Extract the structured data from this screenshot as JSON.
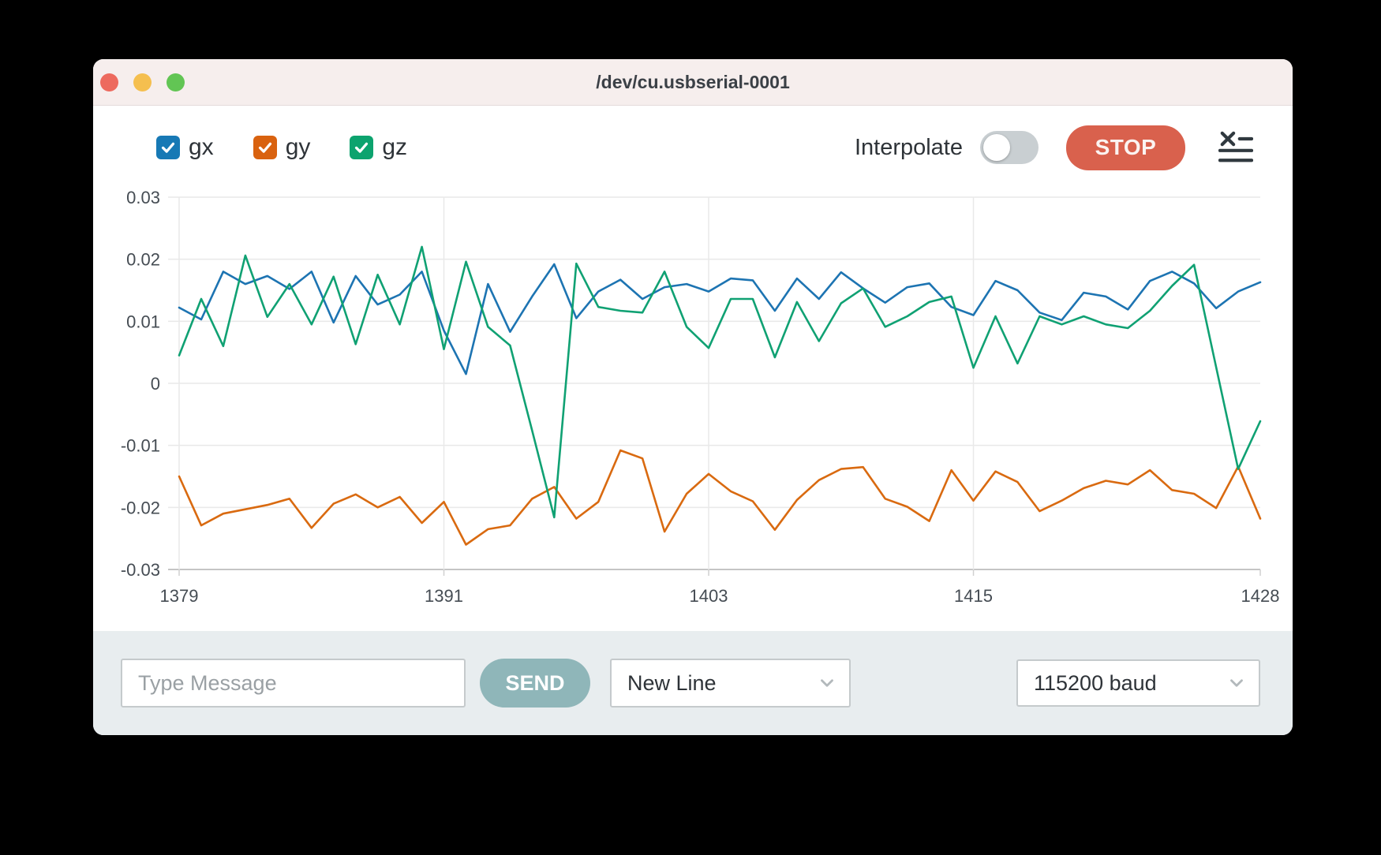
{
  "window": {
    "title": "/dev/cu.usbserial-0001"
  },
  "toolbar": {
    "interpolate_label": "Interpolate",
    "interpolate_on": false,
    "stop_label": "STOP"
  },
  "legend": {
    "items": [
      {
        "label": "gx",
        "color": "#1779b5",
        "checked": true
      },
      {
        "label": "gy",
        "color": "#d9620f",
        "checked": true
      },
      {
        "label": "gz",
        "color": "#0ca36e",
        "checked": true
      }
    ]
  },
  "chart_data": {
    "type": "line",
    "title": "",
    "xlabel": "",
    "ylabel": "",
    "xlim": [
      1379,
      1428
    ],
    "ylim": [
      -0.03,
      0.03
    ],
    "grid": true,
    "legend_position": "top-left",
    "x_ticks": [
      "1379",
      "1391",
      "1403",
      "1415",
      "1428"
    ],
    "y_ticks": [
      "0.03",
      "0.02",
      "0.01",
      "0",
      "-0.01",
      "-0.02",
      "-0.03"
    ],
    "x": [
      1379,
      1380,
      1381,
      1382,
      1383,
      1384,
      1385,
      1386,
      1387,
      1388,
      1389,
      1390,
      1391,
      1392,
      1393,
      1394,
      1395,
      1396,
      1397,
      1398,
      1399,
      1400,
      1401,
      1402,
      1403,
      1404,
      1405,
      1406,
      1407,
      1408,
      1409,
      1410,
      1411,
      1412,
      1413,
      1414,
      1415,
      1416,
      1417,
      1418,
      1419,
      1420,
      1421,
      1422,
      1423,
      1424,
      1425,
      1426,
      1427,
      1428
    ],
    "series": [
      {
        "name": "gx",
        "color": "#1d74b2",
        "values": [
          0.0122,
          0.0103,
          0.018,
          0.016,
          0.0173,
          0.0152,
          0.018,
          0.0098,
          0.0173,
          0.0127,
          0.0143,
          0.018,
          0.0085,
          0.0015,
          0.016,
          0.0083,
          0.014,
          0.0192,
          0.0105,
          0.0148,
          0.0167,
          0.0136,
          0.0155,
          0.016,
          0.0148,
          0.0169,
          0.0166,
          0.0117,
          0.0169,
          0.0136,
          0.0179,
          0.0153,
          0.013,
          0.0155,
          0.0161,
          0.0123,
          0.011,
          0.0165,
          0.015,
          0.0114,
          0.0102,
          0.0146,
          0.014,
          0.0119,
          0.0165,
          0.018,
          0.0161,
          0.0121,
          0.0148,
          0.0163
        ]
      },
      {
        "name": "gy",
        "color": "#d96a10",
        "values": [
          -0.015,
          -0.0229,
          -0.021,
          -0.0203,
          -0.0196,
          -0.0186,
          -0.0233,
          -0.0194,
          -0.0179,
          -0.02,
          -0.0183,
          -0.0225,
          -0.0191,
          -0.026,
          -0.0235,
          -0.0229,
          -0.0186,
          -0.0167,
          -0.0218,
          -0.0191,
          -0.0108,
          -0.0121,
          -0.0239,
          -0.0178,
          -0.0146,
          -0.0174,
          -0.019,
          -0.0236,
          -0.0188,
          -0.0156,
          -0.0138,
          -0.0135,
          -0.0186,
          -0.0199,
          -0.0222,
          -0.014,
          -0.0189,
          -0.0142,
          -0.0159,
          -0.0206,
          -0.0189,
          -0.0169,
          -0.0157,
          -0.0163,
          -0.014,
          -0.0172,
          -0.0178,
          -0.0201,
          -0.0134,
          -0.0218
        ]
      },
      {
        "name": "gz",
        "color": "#10a173",
        "values": [
          0.0045,
          0.0136,
          0.006,
          0.0206,
          0.0107,
          0.016,
          0.0095,
          0.0172,
          0.0063,
          0.0175,
          0.0095,
          0.022,
          0.0055,
          0.0196,
          0.0091,
          0.0061,
          -0.0076,
          -0.0216,
          0.0193,
          0.0123,
          0.0117,
          0.0114,
          0.018,
          0.0091,
          0.0057,
          0.0136,
          0.0136,
          0.0042,
          0.0131,
          0.0068,
          0.0129,
          0.0153,
          0.0091,
          0.0108,
          0.0131,
          0.014,
          0.0025,
          0.0108,
          0.0032,
          0.0108,
          0.0095,
          0.0108,
          0.0095,
          0.0089,
          0.0117,
          0.0157,
          0.0191,
          0.0026,
          -0.0138,
          -0.0061
        ]
      }
    ]
  },
  "bottombar": {
    "message_placeholder": "Type Message",
    "send_label": "SEND",
    "line_ending": "New Line",
    "baud_rate": "115200 baud"
  }
}
